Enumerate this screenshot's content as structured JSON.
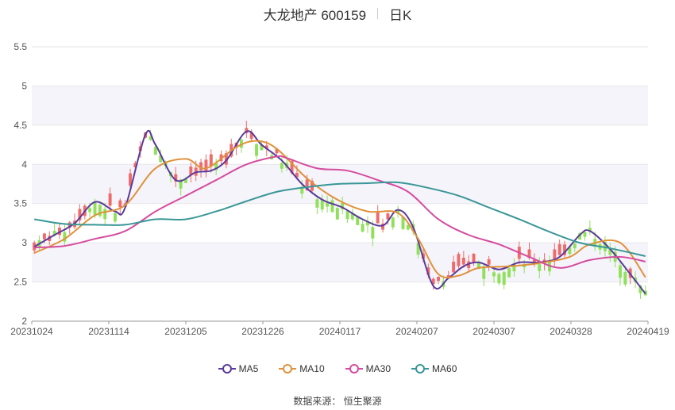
{
  "header": {
    "title": "大龙地产 600159",
    "period": "日K"
  },
  "source": "数据来源：  恒生聚源",
  "legend": [
    {
      "name": "MA5",
      "color": "#5b3a9b"
    },
    {
      "name": "MA10",
      "color": "#e0913a"
    },
    {
      "name": "MA30",
      "color": "#d54c9e"
    },
    {
      "name": "MA60",
      "color": "#3a9797"
    }
  ],
  "chart_data": {
    "type": "candlestick",
    "title": "大龙地产 600159",
    "ylim": [
      2,
      5.5
    ],
    "yticks": [
      "2",
      "2.5",
      "3",
      "3.5",
      "4",
      "4.5",
      "5",
      "5.5"
    ],
    "xticks": [
      "20231024",
      "20231114",
      "20231205",
      "20231226",
      "20240117",
      "20240207",
      "20240307",
      "20240328",
      "20240419"
    ],
    "grid": true,
    "colors": {
      "up": "#ef6b6b",
      "down": "#8fe05a"
    },
    "series": [
      {
        "name": "MA5",
        "color": "#5b3a9b",
        "points": [
          [
            0,
            2.95
          ],
          [
            4,
            3.1
          ],
          [
            8,
            3.25
          ],
          [
            12,
            3.52
          ],
          [
            16,
            3.4
          ],
          [
            18,
            3.45
          ],
          [
            22,
            4.38
          ],
          [
            24,
            4.25
          ],
          [
            28,
            3.8
          ],
          [
            32,
            3.9
          ],
          [
            35,
            3.92
          ],
          [
            38,
            4.05
          ],
          [
            42,
            4.42
          ],
          [
            45,
            4.25
          ],
          [
            49,
            4.05
          ],
          [
            53,
            3.75
          ],
          [
            57,
            3.55
          ],
          [
            61,
            3.45
          ],
          [
            65,
            3.3
          ],
          [
            69,
            3.22
          ],
          [
            72,
            3.42
          ],
          [
            75,
            3.2
          ],
          [
            79,
            2.45
          ],
          [
            82,
            2.55
          ],
          [
            85,
            2.7
          ],
          [
            88,
            2.75
          ],
          [
            92,
            2.66
          ],
          [
            96,
            2.75
          ],
          [
            100,
            2.75
          ],
          [
            104,
            2.82
          ],
          [
            108,
            3.1
          ],
          [
            110,
            3.15
          ],
          [
            114,
            2.92
          ],
          [
            118,
            2.6
          ],
          [
            121,
            2.35
          ]
        ]
      },
      {
        "name": "MA10",
        "color": "#e0913a",
        "points": [
          [
            0,
            2.87
          ],
          [
            6,
            3.05
          ],
          [
            12,
            3.35
          ],
          [
            18,
            3.48
          ],
          [
            24,
            3.95
          ],
          [
            30,
            4.07
          ],
          [
            34,
            3.95
          ],
          [
            40,
            4.22
          ],
          [
            44,
            4.3
          ],
          [
            48,
            4.2
          ],
          [
            54,
            3.82
          ],
          [
            60,
            3.55
          ],
          [
            66,
            3.4
          ],
          [
            72,
            3.38
          ],
          [
            76,
            3.05
          ],
          [
            80,
            2.6
          ],
          [
            84,
            2.58
          ],
          [
            88,
            2.68
          ],
          [
            94,
            2.7
          ],
          [
            100,
            2.74
          ],
          [
            106,
            2.82
          ],
          [
            110,
            2.98
          ],
          [
            116,
            3.0
          ],
          [
            121,
            2.56
          ]
        ]
      },
      {
        "name": "MA30",
        "color": "#d54c9e",
        "points": [
          [
            0,
            2.94
          ],
          [
            6,
            2.96
          ],
          [
            12,
            3.05
          ],
          [
            18,
            3.15
          ],
          [
            24,
            3.4
          ],
          [
            30,
            3.6
          ],
          [
            36,
            3.8
          ],
          [
            42,
            4.0
          ],
          [
            48,
            4.1
          ],
          [
            50,
            4.08
          ],
          [
            56,
            3.95
          ],
          [
            62,
            3.92
          ],
          [
            68,
            3.8
          ],
          [
            74,
            3.65
          ],
          [
            80,
            3.3
          ],
          [
            86,
            3.1
          ],
          [
            92,
            2.98
          ],
          [
            98,
            2.82
          ],
          [
            104,
            2.68
          ],
          [
            110,
            2.78
          ],
          [
            116,
            2.82
          ],
          [
            121,
            2.76
          ]
        ]
      },
      {
        "name": "MA60",
        "color": "#3a9797",
        "points": [
          [
            0,
            3.3
          ],
          [
            6,
            3.24
          ],
          [
            12,
            3.23
          ],
          [
            18,
            3.23
          ],
          [
            24,
            3.3
          ],
          [
            30,
            3.3
          ],
          [
            36,
            3.4
          ],
          [
            42,
            3.53
          ],
          [
            48,
            3.65
          ],
          [
            54,
            3.71
          ],
          [
            60,
            3.75
          ],
          [
            66,
            3.76
          ],
          [
            72,
            3.77
          ],
          [
            78,
            3.7
          ],
          [
            84,
            3.6
          ],
          [
            90,
            3.45
          ],
          [
            96,
            3.3
          ],
          [
            102,
            3.14
          ],
          [
            108,
            3.0
          ],
          [
            114,
            2.93
          ],
          [
            121,
            2.83
          ]
        ]
      }
    ]
  }
}
